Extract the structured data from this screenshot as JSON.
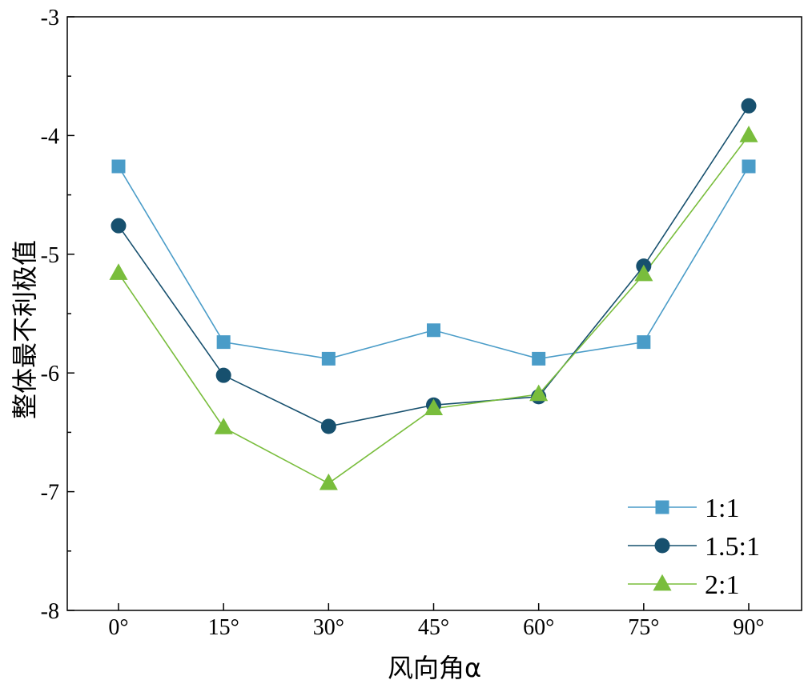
{
  "chart_data": {
    "type": "line",
    "title": "",
    "xlabel": "风向角α",
    "ylabel": "整体最不利极值",
    "categories": [
      "0°",
      "15°",
      "30°",
      "45°",
      "60°",
      "75°",
      "90°"
    ],
    "ylim": [
      -8,
      -3
    ],
    "yticks": [
      "-3",
      "-4",
      "-5",
      "-6",
      "-7",
      "-8"
    ],
    "grid": false,
    "legend_position": "bottom-right",
    "series": [
      {
        "name": "1:1",
        "marker": "square",
        "color": "#4a9cc8",
        "values": [
          -4.26,
          -5.74,
          -5.88,
          -5.64,
          -5.88,
          -5.74,
          -4.26
        ]
      },
      {
        "name": "1.5:1",
        "marker": "circle",
        "color": "#17506e",
        "values": [
          -4.76,
          -6.02,
          -6.45,
          -6.27,
          -6.2,
          -5.1,
          -3.75
        ]
      },
      {
        "name": "2:1",
        "marker": "triangle",
        "color": "#79bd3c",
        "values": [
          -5.16,
          -6.46,
          -6.93,
          -6.3,
          -6.18,
          -5.17,
          -4.0
        ]
      }
    ]
  }
}
